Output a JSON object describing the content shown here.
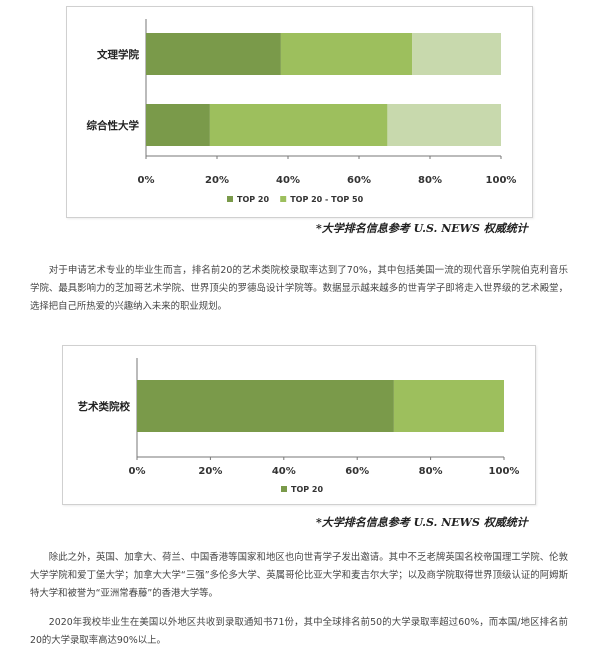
{
  "colors": {
    "top20": "#7a9a4a",
    "top20_50": "#9dbf5d",
    "rest": "#c8d9ad",
    "axis": "#777777"
  },
  "chart_data": [
    {
      "type": "bar",
      "orientation": "horizontal",
      "stacked": true,
      "categories": [
        "文理学院",
        "综合性大学"
      ],
      "series": [
        {
          "name": "TOP 20",
          "values": [
            38,
            18
          ]
        },
        {
          "name": "TOP 20 - TOP 50",
          "values": [
            37,
            50
          ]
        },
        {
          "name": "",
          "values": [
            25,
            32
          ]
        }
      ],
      "xlim": [
        0,
        100
      ],
      "xticks": [
        "0%",
        "20%",
        "40%",
        "60%",
        "80%",
        "100%"
      ],
      "legend": "bottom",
      "grid": false
    },
    {
      "type": "bar",
      "orientation": "horizontal",
      "stacked": true,
      "categories": [
        "艺术类院校"
      ],
      "series": [
        {
          "name": "TOP 20",
          "values": [
            70
          ]
        },
        {
          "name": "",
          "values": [
            30
          ]
        }
      ],
      "xlim": [
        0,
        100
      ],
      "xticks": [
        "0%",
        "20%",
        "40%",
        "60%",
        "80%",
        "100%"
      ],
      "legend": "bottom",
      "grid": false
    }
  ],
  "caption1": "*大学排名信息参考 U.S. NEWS 权威统计",
  "caption2": "*大学排名信息参考 U.S. NEWS 权威统计",
  "paragraphs": {
    "p1": "对于申请艺术专业的毕业生而言，排名前20的艺术类院校录取率达到了70%，其中包括美国一流的现代音乐学院伯克利音乐学院、最具影响力的芝加哥艺术学院、世界顶尖的罗德岛设计学院等。数据显示越来越多的世青学子即将走入世界级的艺术殿堂，选择把自己所热爱的兴趣纳入未来的职业规划。",
    "p2": "除此之外，英国、加拿大、荷兰、中国香港等国家和地区也向世青学子发出邀请。其中不乏老牌英国名校帝国理工学院、伦敦大学学院和爱丁堡大学；加拿大大学“三强”多伦多大学、英属哥伦比亚大学和麦吉尔大学；以及商学院取得世界顶级认证的阿姆斯特大学和被誉为“亚洲常春藤”的香港大学等。",
    "p3": "2020年我校毕业生在美国以外地区共收到录取通知书71份，其中全球排名前50的大学录取率超过60%，而本国/地区排名前20的大学录取率高达90%以上。"
  }
}
